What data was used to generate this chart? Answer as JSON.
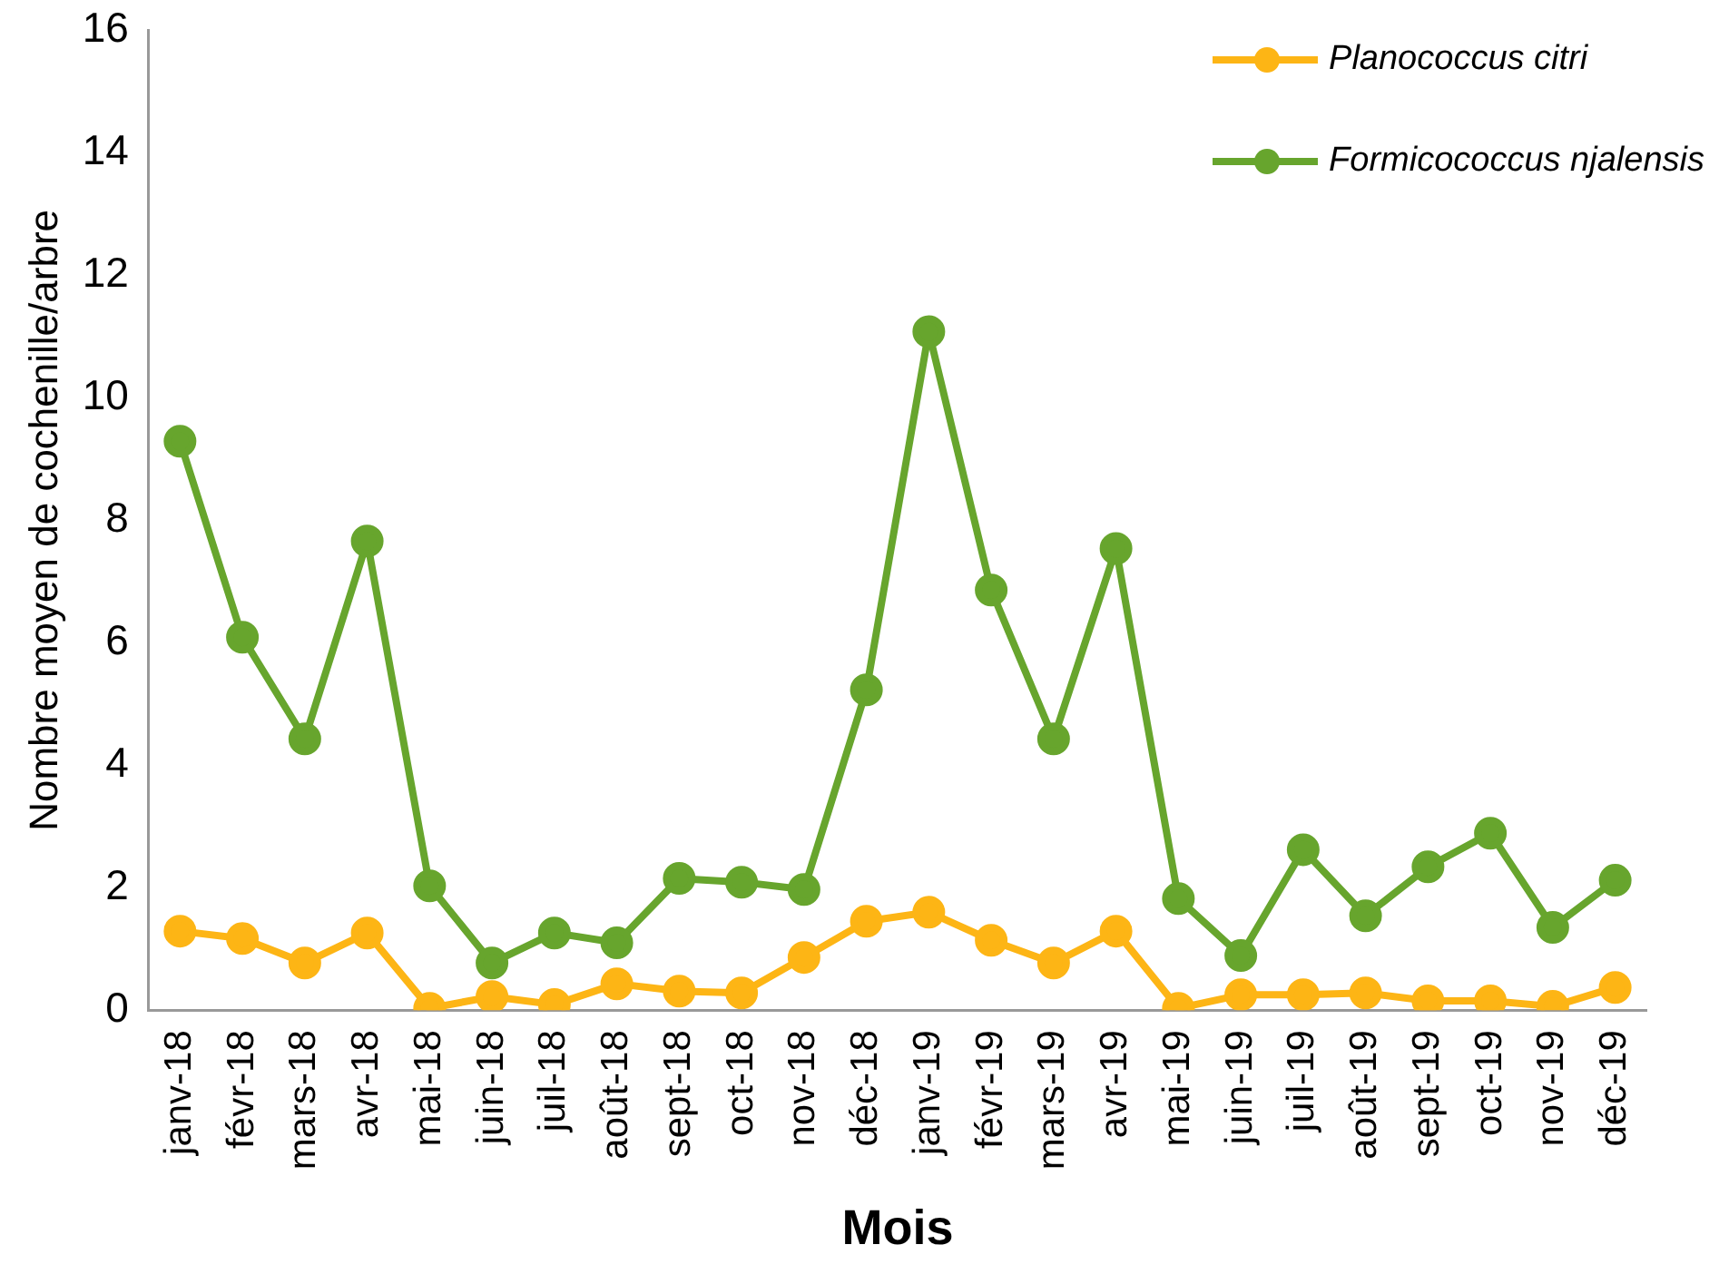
{
  "chart_data": {
    "type": "line",
    "xlabel": "Mois",
    "ylabel": "Nombre moyen de cochenille/arbre",
    "categories": [
      "janv-18",
      "févr-18",
      "mars-18",
      "avr-18",
      "mai-18",
      "juin-18",
      "juil-18",
      "août-18",
      "sept-18",
      "oct-18",
      "nov-18",
      "déc-18",
      "janv-19",
      "févr-19",
      "mars-19",
      "avr-19",
      "mai-19",
      "juin-19",
      "juil-19",
      "août-19",
      "sept-19",
      "oct-19",
      "nov-19",
      "déc-19"
    ],
    "series": [
      {
        "name": "Planococcus citri",
        "color": "#fdb515",
        "values": [
          1.29,
          1.17,
          0.77,
          1.26,
          0.03,
          0.22,
          0.09,
          0.43,
          0.31,
          0.28,
          0.86,
          1.45,
          1.6,
          1.14,
          0.77,
          1.29,
          0.03,
          0.25,
          0.25,
          0.28,
          0.15,
          0.15,
          0.06,
          0.37
        ]
      },
      {
        "name": "Formicococcus njalensis",
        "color": "#67a52d",
        "values": [
          9.29,
          6.09,
          4.43,
          7.66,
          2.03,
          0.77,
          1.26,
          1.1,
          2.15,
          2.09,
          1.97,
          5.23,
          11.08,
          6.86,
          4.43,
          7.54,
          1.82,
          0.89,
          2.62,
          1.54,
          2.34,
          2.89,
          1.35,
          2.12
        ]
      }
    ],
    "ylim": [
      0,
      16
    ],
    "yticks": [
      0,
      2,
      4,
      6,
      8,
      10,
      12,
      14,
      16
    ],
    "grid": false,
    "legend": "top right",
    "marker": "circle",
    "line_style": "solid"
  }
}
